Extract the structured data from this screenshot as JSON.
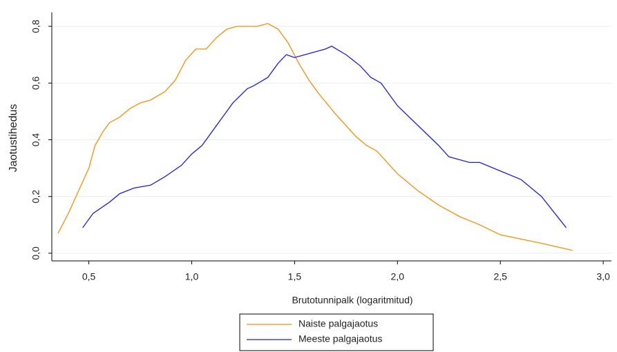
{
  "chart_data": {
    "type": "line",
    "xlabel": "Brutotunnipalk (logaritmitud)",
    "ylabel": "Jaotustihedus",
    "xlim": [
      0.32,
      3.04
    ],
    "ylim": [
      -0.027,
      0.849
    ],
    "xticks": [
      {
        "value": 0.5,
        "label": "0,5"
      },
      {
        "value": 1.0,
        "label": "1,0"
      },
      {
        "value": 1.5,
        "label": "1,5"
      },
      {
        "value": 2.0,
        "label": "2,0"
      },
      {
        "value": 2.5,
        "label": "2,5"
      },
      {
        "value": 3.0,
        "label": "3,0"
      }
    ],
    "yticks": [
      {
        "value": 0,
        "label": "0,0"
      },
      {
        "value": 0.2,
        "label": "0,2"
      },
      {
        "value": 0.4,
        "label": "0,4"
      },
      {
        "value": 0.6,
        "label": "0,6"
      },
      {
        "value": 0.8,
        "label": "0,8"
      }
    ],
    "grid": true,
    "series": [
      {
        "name": "Naiste palgajaotus",
        "color": "#ff8c00",
        "x": [
          0.35,
          0.4,
          0.45,
          0.5,
          0.53,
          0.57,
          0.6,
          0.65,
          0.7,
          0.75,
          0.8,
          0.87,
          0.92,
          0.97,
          1.02,
          1.07,
          1.12,
          1.17,
          1.22,
          1.27,
          1.32,
          1.37,
          1.42,
          1.47,
          1.52,
          1.57,
          1.62,
          1.7,
          1.8,
          1.85,
          1.9,
          2.0,
          2.1,
          2.2,
          2.3,
          2.4,
          2.5,
          2.6,
          2.7,
          2.85
        ],
        "values": [
          0.07,
          0.14,
          0.22,
          0.3,
          0.38,
          0.43,
          0.46,
          0.48,
          0.51,
          0.53,
          0.54,
          0.57,
          0.61,
          0.68,
          0.72,
          0.72,
          0.76,
          0.79,
          0.8,
          0.8,
          0.8,
          0.81,
          0.79,
          0.74,
          0.67,
          0.61,
          0.56,
          0.49,
          0.41,
          0.38,
          0.36,
          0.28,
          0.22,
          0.17,
          0.13,
          0.1,
          0.065,
          0.05,
          0.035,
          0.01
        ]
      },
      {
        "name": "Meeste palgajaotus",
        "color": "#1a1aff",
        "x": [
          0.47,
          0.52,
          0.6,
          0.65,
          0.72,
          0.8,
          0.87,
          0.95,
          1.0,
          1.05,
          1.1,
          1.15,
          1.2,
          1.27,
          1.3,
          1.37,
          1.42,
          1.46,
          1.5,
          1.55,
          1.6,
          1.65,
          1.68,
          1.75,
          1.82,
          1.87,
          1.92,
          2.0,
          2.1,
          2.2,
          2.25,
          2.35,
          2.4,
          2.5,
          2.6,
          2.7,
          2.82
        ],
        "values": [
          0.09,
          0.14,
          0.18,
          0.21,
          0.23,
          0.24,
          0.27,
          0.31,
          0.35,
          0.38,
          0.43,
          0.48,
          0.53,
          0.58,
          0.59,
          0.62,
          0.67,
          0.7,
          0.69,
          0.7,
          0.71,
          0.72,
          0.73,
          0.7,
          0.66,
          0.62,
          0.6,
          0.52,
          0.45,
          0.38,
          0.34,
          0.32,
          0.32,
          0.29,
          0.26,
          0.2,
          0.09
        ]
      }
    ]
  }
}
